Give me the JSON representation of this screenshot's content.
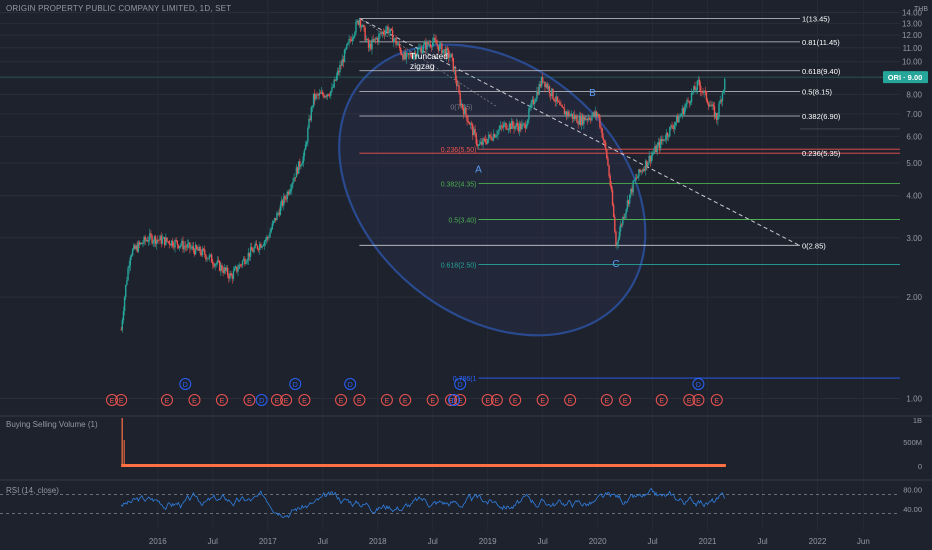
{
  "header": {
    "symbol_title": "ORIGIN PROPERTY PUBLIC COMPANY LIMITED, 1D, SET",
    "currency": "THB"
  },
  "last_price_label": "ORI · 9.00",
  "annotation": {
    "text_line1": "Truncated",
    "text_line2": "zigzag"
  },
  "wave_labels": [
    "A",
    "B",
    "C"
  ],
  "retracement_dashed_label": "0(7.35)",
  "colors": {
    "background": "#1e222d",
    "candle_up": "#26a69a",
    "candle_down": "#ef5350",
    "wedge": "#2a4a8f",
    "fib_red": "#ef5350",
    "fib_green": "#4caf50",
    "fib_teal": "#26a69a",
    "fib_blue": "#2962ff",
    "rsi": "#2f7fe0",
    "volume": "#ff7043"
  },
  "chart_data": {
    "type": "candlestick",
    "title": "ORIGIN PROPERTY PUBLIC COMPANY LIMITED, 1D, SET",
    "x_axis": {
      "tick_labels": [
        "2016",
        "Jul",
        "2017",
        "Jul",
        "2018",
        "Jul",
        "2019",
        "Jul",
        "2020",
        "Jul",
        "2021",
        "Jul",
        "2022",
        "Jun"
      ],
      "range": [
        "2015-08",
        "2022-10"
      ]
    },
    "y_axis": {
      "scale": "log",
      "tick_labels": [
        "1.00",
        "2.00",
        "3.00",
        "4.00",
        "5.00",
        "6.00",
        "7.00",
        "8.00",
        "9.00",
        "10.00",
        "11.00",
        "12.00",
        "13.00",
        "14.00"
      ],
      "range": [
        1.0,
        14.0
      ],
      "currency": "THB"
    },
    "price_path": [
      {
        "date": "2015-09",
        "price": 1.6
      },
      {
        "date": "2015-10",
        "price": 2.7
      },
      {
        "date": "2015-12",
        "price": 3.0
      },
      {
        "date": "2016-03",
        "price": 2.9
      },
      {
        "date": "2016-06",
        "price": 2.7
      },
      {
        "date": "2016-09",
        "price": 2.3
      },
      {
        "date": "2016-11",
        "price": 2.7
      },
      {
        "date": "2017-01",
        "price": 3.0
      },
      {
        "date": "2017-03",
        "price": 4.0
      },
      {
        "date": "2017-05",
        "price": 5.3
      },
      {
        "date": "2017-06",
        "price": 7.8
      },
      {
        "date": "2017-08",
        "price": 8.2
      },
      {
        "date": "2017-09",
        "price": 9.8
      },
      {
        "date": "2017-11",
        "price": 13.45
      },
      {
        "date": "2017-12",
        "price": 11.0
      },
      {
        "date": "2018-02",
        "price": 12.6
      },
      {
        "date": "2018-04",
        "price": 10.2
      },
      {
        "date": "2018-07",
        "price": 11.5
      },
      {
        "date": "2018-09",
        "price": 10.3
      },
      {
        "date": "2018-10",
        "price": 7.6
      },
      {
        "date": "2018-12",
        "price": 5.6
      },
      {
        "date": "2019-03",
        "price": 6.5
      },
      {
        "date": "2019-05",
        "price": 6.4
      },
      {
        "date": "2019-07",
        "price": 8.9
      },
      {
        "date": "2019-09",
        "price": 7.2
      },
      {
        "date": "2019-11",
        "price": 6.7
      },
      {
        "date": "2020-01",
        "price": 7.0
      },
      {
        "date": "2020-02",
        "price": 5.2
      },
      {
        "date": "2020-03",
        "price": 2.85
      },
      {
        "date": "2020-05",
        "price": 4.4
      },
      {
        "date": "2020-08",
        "price": 5.8
      },
      {
        "date": "2020-10",
        "price": 6.9
      },
      {
        "date": "2020-12",
        "price": 8.6
      },
      {
        "date": "2021-02",
        "price": 6.8
      },
      {
        "date": "2021-03",
        "price": 9.0
      }
    ],
    "last_price": 9.0,
    "fib_extension": {
      "levels": [
        {
          "label": "1(13.45)",
          "ratio": 1,
          "price": 13.45
        },
        {
          "label": "0.81(11.45)",
          "ratio": 0.81,
          "price": 11.45
        },
        {
          "label": "0.618(9.40)",
          "ratio": 0.618,
          "price": 9.4
        },
        {
          "label": "0.5(8.15)",
          "ratio": 0.5,
          "price": 8.15
        },
        {
          "label": "0.382(6.90)",
          "ratio": 0.382,
          "price": 6.9
        },
        {
          "label": "0.236(5.35)",
          "ratio": 0.236,
          "price": 5.35
        },
        {
          "label": "0(2.85)",
          "ratio": 0,
          "price": 2.85
        }
      ],
      "anchor_start": "2017-11"
    },
    "fib_retracement": {
      "levels": [
        {
          "label": "0.236(5.50)",
          "price": 5.5,
          "color": "red"
        },
        {
          "label": "0.382(4.35)",
          "price": 4.35,
          "color": "green"
        },
        {
          "label": "0.5(3.40)",
          "price": 3.4,
          "color": "green"
        },
        {
          "label": "0.618(2.50)",
          "price": 2.5,
          "color": "teal"
        },
        {
          "label": "0.786(1",
          "price": 1.15,
          "color": "blue"
        }
      ],
      "anchor_start": "2018-12"
    },
    "wave_points": [
      {
        "label": "A",
        "date": "2018-12",
        "price": 5.3
      },
      {
        "label": "B",
        "date": "2019-12",
        "price": 7.6
      },
      {
        "label": "C",
        "date": "2020-03",
        "price": 2.7
      }
    ],
    "trendline": {
      "from": {
        "date": "2017-11",
        "price": 13.45
      },
      "to": {
        "date": "2021-11",
        "price": 2.85
      }
    },
    "events": {
      "E_dates": [
        "2015-08",
        "2015-09",
        "2016-02",
        "2016-05",
        "2016-08",
        "2016-11",
        "2017-02",
        "2017-03",
        "2017-05",
        "2017-09",
        "2017-11",
        "2018-02",
        "2018-04",
        "2018-07",
        "2018-09",
        "2018-10",
        "2019-01",
        "2019-02",
        "2019-04",
        "2019-07",
        "2019-10",
        "2020-02",
        "2020-04",
        "2020-08",
        "2020-11",
        "2020-12",
        "2021-02"
      ],
      "D_dates": [
        "2016-04",
        "2016-12",
        "2017-04",
        "2017-10",
        "2018-09",
        "2018-10",
        "2020-12"
      ]
    },
    "volume_pane": {
      "label": "Buying Selling Volume (1)",
      "y_tick_labels": [
        "1B",
        "500M",
        "0"
      ]
    },
    "rsi_pane": {
      "label": "RSI (14, close)",
      "y_tick_labels": [
        "80.00",
        "40.00"
      ],
      "bands": [
        70,
        30
      ]
    }
  }
}
